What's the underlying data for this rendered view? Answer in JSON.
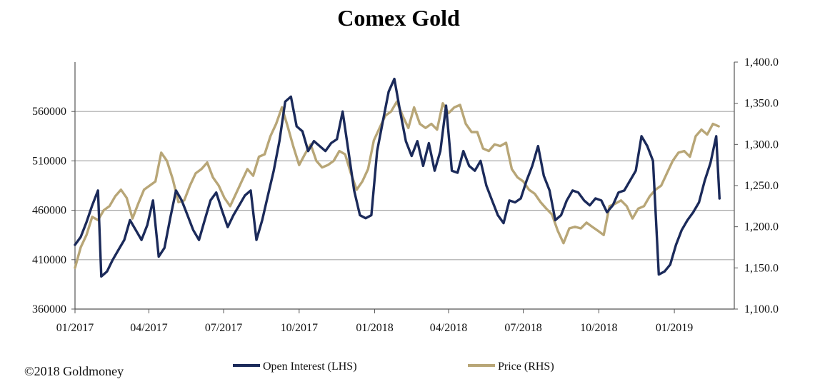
{
  "copyright": "©2018 Goldmoney",
  "colors": {
    "open_interest": "#1b2a5a",
    "price": "#b8a677",
    "gridline": "#a8a8a8",
    "axis": "#555555"
  },
  "chart_data": {
    "type": "line",
    "title": "Comex Gold",
    "x_ticks": [
      "01/2017",
      "04/2017",
      "07/2017",
      "10/2017",
      "01/2018",
      "04/2018",
      "07/2018",
      "10/2018",
      "01/2019"
    ],
    "x_tick_dates": [
      "2017-01-01",
      "2017-04-01",
      "2017-07-01",
      "2017-10-01",
      "2018-01-01",
      "2018-04-01",
      "2018-07-01",
      "2018-10-01",
      "2019-01-01"
    ],
    "x_range": [
      "2017-01-01",
      "2019-03-15"
    ],
    "y_left": {
      "min": 360000,
      "max": 610000,
      "ticks": [
        360000,
        410000,
        460000,
        510000,
        560000
      ],
      "tick_labels": [
        "360000",
        "410000",
        "460000",
        "510000",
        "560000"
      ]
    },
    "y_right": {
      "min": 1100,
      "max": 1400,
      "ticks": [
        1100,
        1150,
        1200,
        1250,
        1300,
        1350,
        1400
      ],
      "tick_labels": [
        "1,100.0",
        "1,150.0",
        "1,200.0",
        "1,250.0",
        "1,300.0",
        "1,350.0",
        "1,400.0"
      ]
    },
    "grid": true,
    "legend_position": "bottom",
    "series": [
      {
        "name": "Open Interest (LHS)",
        "axis": "left",
        "points": [
          [
            "2017-01-01",
            425000
          ],
          [
            "2017-01-08",
            433000
          ],
          [
            "2017-01-15",
            448000
          ],
          [
            "2017-01-22",
            465000
          ],
          [
            "2017-01-29",
            480000
          ],
          [
            "2017-02-02",
            393000
          ],
          [
            "2017-02-09",
            398000
          ],
          [
            "2017-02-16",
            410000
          ],
          [
            "2017-02-23",
            420000
          ],
          [
            "2017-03-02",
            430000
          ],
          [
            "2017-03-09",
            450000
          ],
          [
            "2017-03-16",
            440000
          ],
          [
            "2017-03-23",
            430000
          ],
          [
            "2017-03-30",
            445000
          ],
          [
            "2017-04-06",
            470000
          ],
          [
            "2017-04-13",
            413000
          ],
          [
            "2017-04-20",
            422000
          ],
          [
            "2017-04-27",
            452000
          ],
          [
            "2017-05-04",
            480000
          ],
          [
            "2017-05-11",
            470000
          ],
          [
            "2017-05-18",
            455000
          ],
          [
            "2017-05-25",
            440000
          ],
          [
            "2017-06-01",
            430000
          ],
          [
            "2017-06-08",
            450000
          ],
          [
            "2017-06-15",
            470000
          ],
          [
            "2017-06-22",
            478000
          ],
          [
            "2017-06-29",
            460000
          ],
          [
            "2017-07-06",
            443000
          ],
          [
            "2017-07-13",
            455000
          ],
          [
            "2017-07-20",
            465000
          ],
          [
            "2017-07-27",
            475000
          ],
          [
            "2017-08-03",
            480000
          ],
          [
            "2017-08-10",
            430000
          ],
          [
            "2017-08-17",
            450000
          ],
          [
            "2017-08-24",
            475000
          ],
          [
            "2017-08-31",
            500000
          ],
          [
            "2017-09-07",
            530000
          ],
          [
            "2017-09-14",
            570000
          ],
          [
            "2017-09-21",
            575000
          ],
          [
            "2017-09-28",
            545000
          ],
          [
            "2017-10-05",
            540000
          ],
          [
            "2017-10-12",
            520000
          ],
          [
            "2017-10-19",
            530000
          ],
          [
            "2017-10-26",
            525000
          ],
          [
            "2017-11-02",
            520000
          ],
          [
            "2017-11-09",
            528000
          ],
          [
            "2017-11-16",
            532000
          ],
          [
            "2017-11-23",
            560000
          ],
          [
            "2017-11-30",
            520000
          ],
          [
            "2017-12-07",
            480000
          ],
          [
            "2017-12-14",
            455000
          ],
          [
            "2017-12-21",
            452000
          ],
          [
            "2017-12-28",
            455000
          ],
          [
            "2018-01-04",
            520000
          ],
          [
            "2018-01-11",
            550000
          ],
          [
            "2018-01-18",
            580000
          ],
          [
            "2018-01-25",
            593000
          ],
          [
            "2018-02-01",
            560000
          ],
          [
            "2018-02-08",
            530000
          ],
          [
            "2018-02-15",
            515000
          ],
          [
            "2018-02-22",
            530000
          ],
          [
            "2018-03-01",
            505000
          ],
          [
            "2018-03-08",
            528000
          ],
          [
            "2018-03-15",
            500000
          ],
          [
            "2018-03-22",
            520000
          ],
          [
            "2018-03-29",
            566000
          ],
          [
            "2018-04-05",
            500000
          ],
          [
            "2018-04-12",
            498000
          ],
          [
            "2018-04-19",
            520000
          ],
          [
            "2018-04-26",
            505000
          ],
          [
            "2018-05-03",
            500000
          ],
          [
            "2018-05-10",
            510000
          ],
          [
            "2018-05-17",
            485000
          ],
          [
            "2018-05-24",
            470000
          ],
          [
            "2018-05-31",
            455000
          ],
          [
            "2018-06-07",
            447000
          ],
          [
            "2018-06-14",
            470000
          ],
          [
            "2018-06-21",
            468000
          ],
          [
            "2018-06-28",
            472000
          ],
          [
            "2018-07-05",
            490000
          ],
          [
            "2018-07-12",
            505000
          ],
          [
            "2018-07-19",
            525000
          ],
          [
            "2018-07-26",
            495000
          ],
          [
            "2018-08-02",
            480000
          ],
          [
            "2018-08-09",
            450000
          ],
          [
            "2018-08-16",
            455000
          ],
          [
            "2018-08-23",
            470000
          ],
          [
            "2018-08-30",
            480000
          ],
          [
            "2018-09-06",
            478000
          ],
          [
            "2018-09-13",
            470000
          ],
          [
            "2018-09-20",
            465000
          ],
          [
            "2018-09-27",
            472000
          ],
          [
            "2018-10-04",
            470000
          ],
          [
            "2018-10-11",
            458000
          ],
          [
            "2018-10-18",
            465000
          ],
          [
            "2018-10-25",
            478000
          ],
          [
            "2018-11-01",
            480000
          ],
          [
            "2018-11-08",
            490000
          ],
          [
            "2018-11-15",
            500000
          ],
          [
            "2018-11-22",
            535000
          ],
          [
            "2018-11-29",
            525000
          ],
          [
            "2018-12-06",
            510000
          ],
          [
            "2018-12-13",
            395000
          ],
          [
            "2018-12-20",
            398000
          ],
          [
            "2018-12-27",
            405000
          ],
          [
            "2019-01-03",
            425000
          ],
          [
            "2019-01-10",
            440000
          ],
          [
            "2019-01-17",
            450000
          ],
          [
            "2019-01-24",
            458000
          ],
          [
            "2019-01-31",
            468000
          ],
          [
            "2019-02-07",
            490000
          ],
          [
            "2019-02-14",
            508000
          ],
          [
            "2019-02-21",
            535000
          ],
          [
            "2019-02-25",
            472000
          ]
        ]
      },
      {
        "name": "Price (RHS)",
        "axis": "right",
        "points": [
          [
            "2017-01-01",
            1150
          ],
          [
            "2017-01-08",
            1175
          ],
          [
            "2017-01-15",
            1190
          ],
          [
            "2017-01-22",
            1212
          ],
          [
            "2017-01-29",
            1208
          ],
          [
            "2017-02-05",
            1220
          ],
          [
            "2017-02-12",
            1225
          ],
          [
            "2017-02-19",
            1237
          ],
          [
            "2017-02-26",
            1245
          ],
          [
            "2017-03-05",
            1235
          ],
          [
            "2017-03-12",
            1210
          ],
          [
            "2017-03-19",
            1228
          ],
          [
            "2017-03-26",
            1245
          ],
          [
            "2017-04-02",
            1250
          ],
          [
            "2017-04-09",
            1255
          ],
          [
            "2017-04-16",
            1290
          ],
          [
            "2017-04-23",
            1280
          ],
          [
            "2017-04-30",
            1258
          ],
          [
            "2017-05-07",
            1230
          ],
          [
            "2017-05-14",
            1232
          ],
          [
            "2017-05-21",
            1250
          ],
          [
            "2017-05-28",
            1265
          ],
          [
            "2017-06-04",
            1270
          ],
          [
            "2017-06-11",
            1278
          ],
          [
            "2017-06-18",
            1260
          ],
          [
            "2017-06-25",
            1250
          ],
          [
            "2017-07-02",
            1235
          ],
          [
            "2017-07-09",
            1225
          ],
          [
            "2017-07-16",
            1240
          ],
          [
            "2017-07-23",
            1255
          ],
          [
            "2017-07-30",
            1270
          ],
          [
            "2017-08-06",
            1262
          ],
          [
            "2017-08-13",
            1285
          ],
          [
            "2017-08-20",
            1288
          ],
          [
            "2017-08-27",
            1310
          ],
          [
            "2017-09-03",
            1325
          ],
          [
            "2017-09-10",
            1345
          ],
          [
            "2017-09-17",
            1322
          ],
          [
            "2017-09-24",
            1297
          ],
          [
            "2017-10-01",
            1275
          ],
          [
            "2017-10-08",
            1288
          ],
          [
            "2017-10-15",
            1300
          ],
          [
            "2017-10-22",
            1280
          ],
          [
            "2017-10-29",
            1272
          ],
          [
            "2017-11-05",
            1275
          ],
          [
            "2017-11-12",
            1280
          ],
          [
            "2017-11-19",
            1292
          ],
          [
            "2017-11-26",
            1288
          ],
          [
            "2017-12-03",
            1265
          ],
          [
            "2017-12-10",
            1245
          ],
          [
            "2017-12-17",
            1255
          ],
          [
            "2017-12-24",
            1270
          ],
          [
            "2017-12-31",
            1305
          ],
          [
            "2018-01-07",
            1320
          ],
          [
            "2018-01-14",
            1335
          ],
          [
            "2018-01-21",
            1340
          ],
          [
            "2018-01-28",
            1352
          ],
          [
            "2018-02-04",
            1335
          ],
          [
            "2018-02-11",
            1320
          ],
          [
            "2018-02-18",
            1345
          ],
          [
            "2018-02-25",
            1325
          ],
          [
            "2018-03-04",
            1320
          ],
          [
            "2018-03-11",
            1325
          ],
          [
            "2018-03-18",
            1318
          ],
          [
            "2018-03-25",
            1350
          ],
          [
            "2018-04-01",
            1338
          ],
          [
            "2018-04-08",
            1345
          ],
          [
            "2018-04-15",
            1348
          ],
          [
            "2018-04-22",
            1325
          ],
          [
            "2018-04-29",
            1315
          ],
          [
            "2018-05-06",
            1315
          ],
          [
            "2018-05-13",
            1295
          ],
          [
            "2018-05-20",
            1292
          ],
          [
            "2018-05-27",
            1300
          ],
          [
            "2018-06-03",
            1298
          ],
          [
            "2018-06-10",
            1302
          ],
          [
            "2018-06-17",
            1270
          ],
          [
            "2018-06-24",
            1260
          ],
          [
            "2018-07-01",
            1255
          ],
          [
            "2018-07-08",
            1245
          ],
          [
            "2018-07-15",
            1240
          ],
          [
            "2018-07-22",
            1230
          ],
          [
            "2018-07-29",
            1222
          ],
          [
            "2018-08-05",
            1215
          ],
          [
            "2018-08-12",
            1195
          ],
          [
            "2018-08-19",
            1180
          ],
          [
            "2018-08-26",
            1198
          ],
          [
            "2018-09-02",
            1200
          ],
          [
            "2018-09-09",
            1198
          ],
          [
            "2018-09-16",
            1205
          ],
          [
            "2018-09-23",
            1200
          ],
          [
            "2018-09-30",
            1195
          ],
          [
            "2018-10-07",
            1190
          ],
          [
            "2018-10-14",
            1225
          ],
          [
            "2018-10-21",
            1228
          ],
          [
            "2018-10-28",
            1232
          ],
          [
            "2018-11-04",
            1225
          ],
          [
            "2018-11-11",
            1210
          ],
          [
            "2018-11-18",
            1222
          ],
          [
            "2018-11-25",
            1225
          ],
          [
            "2018-12-02",
            1237
          ],
          [
            "2018-12-09",
            1245
          ],
          [
            "2018-12-16",
            1250
          ],
          [
            "2018-12-23",
            1265
          ],
          [
            "2018-12-30",
            1280
          ],
          [
            "2019-01-06",
            1290
          ],
          [
            "2019-01-13",
            1292
          ],
          [
            "2019-01-20",
            1285
          ],
          [
            "2019-01-27",
            1310
          ],
          [
            "2019-02-03",
            1318
          ],
          [
            "2019-02-10",
            1312
          ],
          [
            "2019-02-17",
            1325
          ],
          [
            "2019-02-24",
            1322
          ]
        ]
      }
    ]
  }
}
